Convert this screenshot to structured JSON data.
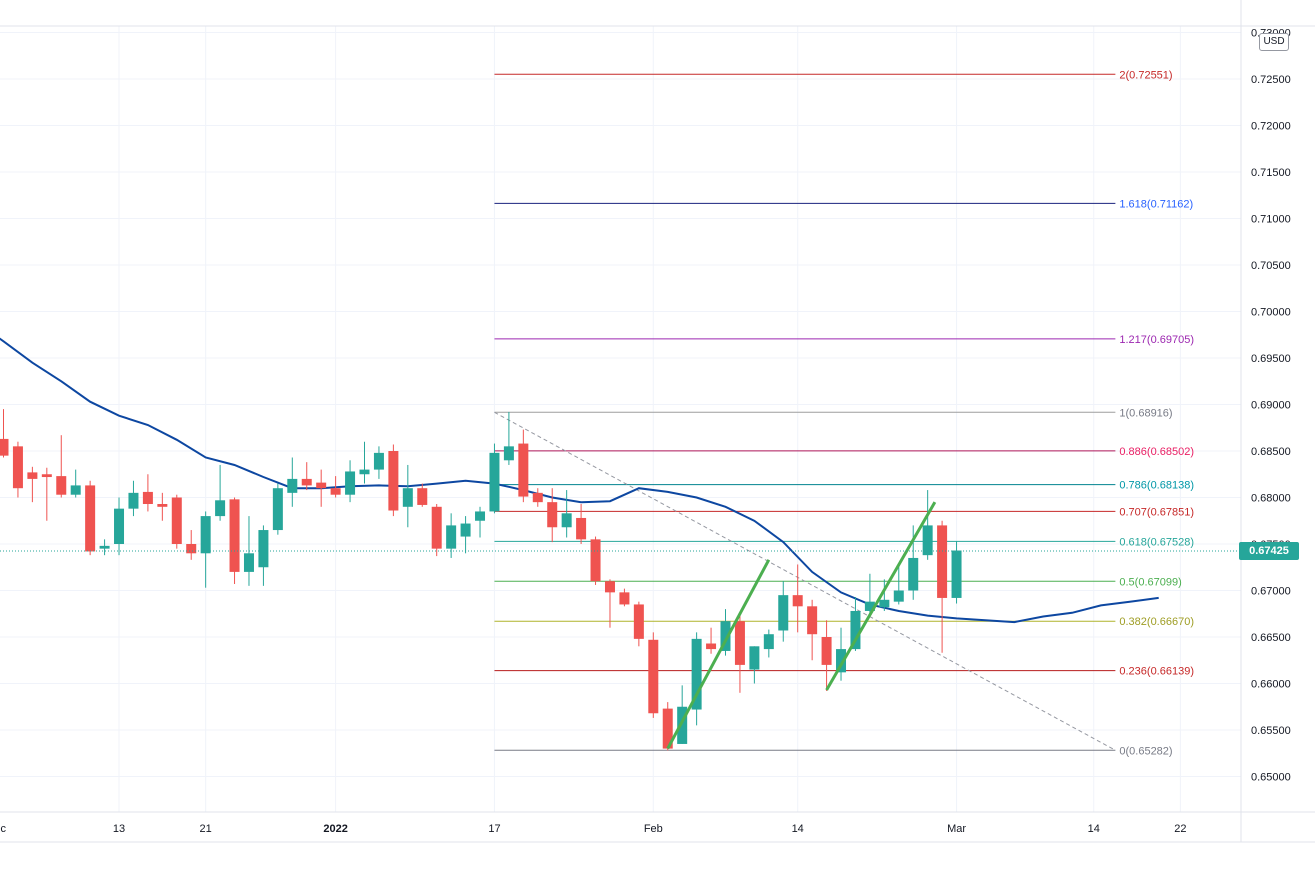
{
  "currency": "USD",
  "last_price": "0.67425",
  "colors": {
    "up": "#26a69a",
    "down": "#ef5350",
    "ma": "#0d47a1",
    "trendline": "#4caf50",
    "grid": "#f0f3fa",
    "axis_text": "#131722"
  },
  "chart_data": {
    "type": "candlestick",
    "y_axis": {
      "range": [
        0.645,
        0.73
      ],
      "tick_labels": [
        "0.65000",
        "0.65500",
        "0.66000",
        "0.66500",
        "0.67000",
        "0.67500",
        "0.68000",
        "0.68500",
        "0.69000",
        "0.69500",
        "0.70000",
        "0.70500",
        "0.71000",
        "0.71500",
        "0.72000",
        "0.72500",
        "0.73000"
      ]
    },
    "x_axis": {
      "tick_labels": [
        {
          "label": "Dec",
          "day": -0.5
        },
        {
          "label": "13",
          "day": 8
        },
        {
          "label": "21",
          "day": 14
        },
        {
          "label": "2022",
          "day": 23,
          "bold": true
        },
        {
          "label": "17",
          "day": 34
        },
        {
          "label": "Feb",
          "day": 45
        },
        {
          "label": "14",
          "day": 55
        },
        {
          "label": "Mar",
          "day": 66
        },
        {
          "label": "14",
          "day": 75.5
        },
        {
          "label": "22",
          "day": 81.5
        }
      ]
    },
    "candles": [
      {
        "d": 0,
        "o": 0.6863,
        "h": 0.6895,
        "l": 0.6843,
        "c": 0.6845
      },
      {
        "d": 1,
        "o": 0.6855,
        "h": 0.686,
        "l": 0.68,
        "c": 0.681
      },
      {
        "d": 2,
        "o": 0.6827,
        "h": 0.6833,
        "l": 0.6795,
        "c": 0.682
      },
      {
        "d": 3,
        "o": 0.6825,
        "h": 0.6832,
        "l": 0.6775,
        "c": 0.6822
      },
      {
        "d": 4,
        "o": 0.6823,
        "h": 0.6867,
        "l": 0.68,
        "c": 0.6803
      },
      {
        "d": 5,
        "o": 0.6803,
        "h": 0.683,
        "l": 0.68,
        "c": 0.6813
      },
      {
        "d": 6,
        "o": 0.6813,
        "h": 0.6818,
        "l": 0.6738,
        "c": 0.6742
      },
      {
        "d": 7,
        "o": 0.6745,
        "h": 0.6755,
        "l": 0.6738,
        "c": 0.6748
      },
      {
        "d": 8,
        "o": 0.675,
        "h": 0.68,
        "l": 0.6738,
        "c": 0.6788
      },
      {
        "d": 9,
        "o": 0.6788,
        "h": 0.6818,
        "l": 0.678,
        "c": 0.6805
      },
      {
        "d": 10,
        "o": 0.6806,
        "h": 0.6825,
        "l": 0.6785,
        "c": 0.6793
      },
      {
        "d": 11,
        "o": 0.6793,
        "h": 0.6805,
        "l": 0.6775,
        "c": 0.679
      },
      {
        "d": 12,
        "o": 0.68,
        "h": 0.6803,
        "l": 0.6745,
        "c": 0.675
      },
      {
        "d": 13,
        "o": 0.675,
        "h": 0.6765,
        "l": 0.6733,
        "c": 0.674
      },
      {
        "d": 14,
        "o": 0.674,
        "h": 0.6785,
        "l": 0.6703,
        "c": 0.678
      },
      {
        "d": 15,
        "o": 0.678,
        "h": 0.6835,
        "l": 0.6775,
        "c": 0.6797
      },
      {
        "d": 16,
        "o": 0.6798,
        "h": 0.68,
        "l": 0.6707,
        "c": 0.672
      },
      {
        "d": 17,
        "o": 0.672,
        "h": 0.678,
        "l": 0.6705,
        "c": 0.674
      },
      {
        "d": 18,
        "o": 0.6725,
        "h": 0.677,
        "l": 0.6705,
        "c": 0.6765
      },
      {
        "d": 19,
        "o": 0.6765,
        "h": 0.6815,
        "l": 0.676,
        "c": 0.681
      },
      {
        "d": 20,
        "o": 0.6805,
        "h": 0.6843,
        "l": 0.679,
        "c": 0.682
      },
      {
        "d": 21,
        "o": 0.682,
        "h": 0.6838,
        "l": 0.6808,
        "c": 0.6813
      },
      {
        "d": 22,
        "o": 0.6816,
        "h": 0.683,
        "l": 0.679,
        "c": 0.681
      },
      {
        "d": 23,
        "o": 0.681,
        "h": 0.6823,
        "l": 0.68,
        "c": 0.6803
      },
      {
        "d": 24,
        "o": 0.6803,
        "h": 0.684,
        "l": 0.6795,
        "c": 0.6828
      },
      {
        "d": 25,
        "o": 0.6825,
        "h": 0.686,
        "l": 0.6815,
        "c": 0.683
      },
      {
        "d": 26,
        "o": 0.683,
        "h": 0.6855,
        "l": 0.682,
        "c": 0.6848
      },
      {
        "d": 27,
        "o": 0.685,
        "h": 0.6857,
        "l": 0.678,
        "c": 0.6786
      },
      {
        "d": 28,
        "o": 0.679,
        "h": 0.6835,
        "l": 0.6768,
        "c": 0.681
      },
      {
        "d": 29,
        "o": 0.681,
        "h": 0.6815,
        "l": 0.679,
        "c": 0.6792
      },
      {
        "d": 30,
        "o": 0.679,
        "h": 0.6793,
        "l": 0.6737,
        "c": 0.6745
      },
      {
        "d": 31,
        "o": 0.6745,
        "h": 0.6783,
        "l": 0.6735,
        "c": 0.677
      },
      {
        "d": 32,
        "o": 0.6758,
        "h": 0.678,
        "l": 0.674,
        "c": 0.6772
      },
      {
        "d": 33,
        "o": 0.6775,
        "h": 0.679,
        "l": 0.6757,
        "c": 0.6785
      },
      {
        "d": 34,
        "o": 0.6785,
        "h": 0.6858,
        "l": 0.6783,
        "c": 0.6848
      },
      {
        "d": 35,
        "o": 0.684,
        "h": 0.6892,
        "l": 0.6835,
        "c": 0.6855
      },
      {
        "d": 36,
        "o": 0.6858,
        "h": 0.6873,
        "l": 0.6795,
        "c": 0.6801
      },
      {
        "d": 37,
        "o": 0.6805,
        "h": 0.681,
        "l": 0.679,
        "c": 0.6795
      },
      {
        "d": 38,
        "o": 0.6795,
        "h": 0.681,
        "l": 0.6752,
        "c": 0.6768
      },
      {
        "d": 39,
        "o": 0.6768,
        "h": 0.6808,
        "l": 0.6757,
        "c": 0.6783
      },
      {
        "d": 40,
        "o": 0.6778,
        "h": 0.6793,
        "l": 0.675,
        "c": 0.6755
      },
      {
        "d": 41,
        "o": 0.6755,
        "h": 0.6758,
        "l": 0.6706,
        "c": 0.671
      },
      {
        "d": 42,
        "o": 0.671,
        "h": 0.6712,
        "l": 0.666,
        "c": 0.6698
      },
      {
        "d": 43,
        "o": 0.6698,
        "h": 0.6702,
        "l": 0.6683,
        "c": 0.6685
      },
      {
        "d": 44,
        "o": 0.6685,
        "h": 0.6688,
        "l": 0.664,
        "c": 0.6648
      },
      {
        "d": 45,
        "o": 0.6647,
        "h": 0.6655,
        "l": 0.6563,
        "c": 0.6568
      },
      {
        "d": 46,
        "o": 0.6573,
        "h": 0.658,
        "l": 0.6528,
        "c": 0.653
      },
      {
        "d": 47,
        "o": 0.6535,
        "h": 0.6598,
        "l": 0.6535,
        "c": 0.6575
      },
      {
        "d": 48,
        "o": 0.6572,
        "h": 0.6655,
        "l": 0.6555,
        "c": 0.6648
      },
      {
        "d": 49,
        "o": 0.6643,
        "h": 0.666,
        "l": 0.6632,
        "c": 0.6637
      },
      {
        "d": 50,
        "o": 0.6635,
        "h": 0.668,
        "l": 0.663,
        "c": 0.6667
      },
      {
        "d": 51,
        "o": 0.6667,
        "h": 0.6677,
        "l": 0.659,
        "c": 0.662
      },
      {
        "d": 52,
        "o": 0.6615,
        "h": 0.664,
        "l": 0.66,
        "c": 0.664
      },
      {
        "d": 53,
        "o": 0.6637,
        "h": 0.6658,
        "l": 0.6628,
        "c": 0.6653
      },
      {
        "d": 54,
        "o": 0.6657,
        "h": 0.671,
        "l": 0.6645,
        "c": 0.6695
      },
      {
        "d": 55,
        "o": 0.6695,
        "h": 0.6728,
        "l": 0.6655,
        "c": 0.6683
      },
      {
        "d": 56,
        "o": 0.6683,
        "h": 0.669,
        "l": 0.6625,
        "c": 0.6653
      },
      {
        "d": 57,
        "o": 0.665,
        "h": 0.6668,
        "l": 0.6592,
        "c": 0.662
      },
      {
        "d": 58,
        "o": 0.6612,
        "h": 0.666,
        "l": 0.6603,
        "c": 0.6637
      },
      {
        "d": 59,
        "o": 0.6637,
        "h": 0.6693,
        "l": 0.6635,
        "c": 0.6678
      },
      {
        "d": 60,
        "o": 0.6678,
        "h": 0.6718,
        "l": 0.6672,
        "c": 0.6688
      },
      {
        "d": 61,
        "o": 0.6682,
        "h": 0.6712,
        "l": 0.6678,
        "c": 0.669
      },
      {
        "d": 62,
        "o": 0.6688,
        "h": 0.6728,
        "l": 0.6685,
        "c": 0.67
      },
      {
        "d": 63,
        "o": 0.67,
        "h": 0.677,
        "l": 0.669,
        "c": 0.6735
      },
      {
        "d": 64,
        "o": 0.6738,
        "h": 0.6808,
        "l": 0.6733,
        "c": 0.677
      },
      {
        "d": 65,
        "o": 0.677,
        "h": 0.6775,
        "l": 0.6633,
        "c": 0.6692
      },
      {
        "d": 66,
        "o": 0.6692,
        "h": 0.6753,
        "l": 0.6686,
        "c": 0.6743
      }
    ],
    "moving_average": [
      {
        "d": -4,
        "v": 0.7015
      },
      {
        "d": -2,
        "v": 0.699
      },
      {
        "d": 0,
        "v": 0.6968
      },
      {
        "d": 2,
        "v": 0.6945
      },
      {
        "d": 4,
        "v": 0.6925
      },
      {
        "d": 6,
        "v": 0.6903
      },
      {
        "d": 8,
        "v": 0.6888
      },
      {
        "d": 10,
        "v": 0.6878
      },
      {
        "d": 12,
        "v": 0.6862
      },
      {
        "d": 14,
        "v": 0.6843
      },
      {
        "d": 16,
        "v": 0.6835
      },
      {
        "d": 18,
        "v": 0.6822
      },
      {
        "d": 20,
        "v": 0.681
      },
      {
        "d": 22,
        "v": 0.681
      },
      {
        "d": 24,
        "v": 0.6812
      },
      {
        "d": 26,
        "v": 0.6813
      },
      {
        "d": 28,
        "v": 0.6812
      },
      {
        "d": 30,
        "v": 0.6815
      },
      {
        "d": 32,
        "v": 0.6818
      },
      {
        "d": 34,
        "v": 0.6815
      },
      {
        "d": 36,
        "v": 0.6808
      },
      {
        "d": 38,
        "v": 0.68
      },
      {
        "d": 40,
        "v": 0.6795
      },
      {
        "d": 42,
        "v": 0.6796
      },
      {
        "d": 44,
        "v": 0.681
      },
      {
        "d": 46,
        "v": 0.6806
      },
      {
        "d": 48,
        "v": 0.68
      },
      {
        "d": 50,
        "v": 0.679
      },
      {
        "d": 52,
        "v": 0.6775
      },
      {
        "d": 54,
        "v": 0.6752
      },
      {
        "d": 56,
        "v": 0.672
      },
      {
        "d": 58,
        "v": 0.6698
      },
      {
        "d": 60,
        "v": 0.6685
      },
      {
        "d": 62,
        "v": 0.6678
      },
      {
        "d": 64,
        "v": 0.6673
      },
      {
        "d": 66,
        "v": 0.667
      },
      {
        "d": 68,
        "v": 0.6668
      },
      {
        "d": 70,
        "v": 0.6666
      },
      {
        "d": 72,
        "v": 0.6672
      },
      {
        "d": 74,
        "v": 0.6676
      },
      {
        "d": 76,
        "v": 0.6684
      },
      {
        "d": 78,
        "v": 0.6688
      },
      {
        "d": 80,
        "v": 0.6692
      }
    ],
    "fibonacci": {
      "levels": [
        {
          "label": "2(0.72551)",
          "value": 0.72551,
          "color": "#c62828"
        },
        {
          "label": "1.618(0.71162)",
          "value": 0.71162,
          "color": "#1a237e",
          "label_color": "#2962ff"
        },
        {
          "label": "1.217(0.69705)",
          "value": 0.69705,
          "color": "#9c27b0"
        },
        {
          "label": "1(0.68916)",
          "value": 0.68916,
          "color": "#9e9e9e",
          "label_color": "#787b86"
        },
        {
          "label": "0.886(0.68502)",
          "value": 0.68502,
          "color": "#ad1457",
          "label_color": "#e91e63"
        },
        {
          "label": "0.786(0.68138)",
          "value": 0.68138,
          "color": "#00838f",
          "label_color": "#0097a7"
        },
        {
          "label": "0.707(0.67851)",
          "value": 0.67851,
          "color": "#c62828"
        },
        {
          "label": "0.618(0.67528)",
          "value": 0.67528,
          "color": "#26a69a"
        },
        {
          "label": "0.5(0.67099)",
          "value": 0.67099,
          "color": "#4caf50"
        },
        {
          "label": "0.382(0.66670)",
          "value": 0.6667,
          "color": "#afb42b",
          "label_color": "#9e9d24"
        },
        {
          "label": "0.236(0.66139)",
          "value": 0.66139,
          "color": "#b71c1c",
          "label_color": "#c62828"
        },
        {
          "label": "0(0.65282)",
          "value": 0.65282,
          "color": "#787b86",
          "label_color": "#787b86"
        }
      ],
      "diagonal": {
        "from": {
          "d": 34,
          "v": 0.68916
        },
        "to": {
          "d": 77,
          "v": 0.65282
        }
      }
    },
    "trendlines": [
      {
        "from": {
          "d": 46,
          "v": 0.653
        },
        "to": {
          "d": 53,
          "v": 0.6733
        }
      },
      {
        "from": {
          "d": 57,
          "v": 0.6593
        },
        "to": {
          "d": 64.5,
          "v": 0.6795
        }
      }
    ]
  }
}
